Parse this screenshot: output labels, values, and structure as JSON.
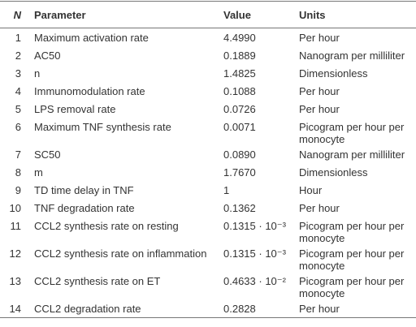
{
  "table": {
    "header": [
      "N",
      "Parameter",
      "Value",
      "Units"
    ],
    "rows": [
      [
        "1",
        "Maximum activation rate",
        "4.4990",
        "Per hour"
      ],
      [
        "2",
        "AC50",
        "0.1889",
        "Nanogram per milliliter"
      ],
      [
        "3",
        "n",
        "1.4825",
        "Dimensionless"
      ],
      [
        "4",
        "Immunomodulation rate",
        "0.1088",
        "Per hour"
      ],
      [
        "5",
        "LPS removal rate",
        "0.0726",
        "Per hour"
      ],
      [
        "6",
        "Maximum TNF synthesis rate",
        "0.0071",
        "Picogram per hour per monocyte"
      ],
      [
        "7",
        "SC50",
        "0.0890",
        "Nanogram per milliliter"
      ],
      [
        "8",
        "m",
        "1.7670",
        "Dimensionless"
      ],
      [
        "9",
        "TD time delay in TNF",
        "1",
        "Hour"
      ],
      [
        "10",
        "TNF degradation rate",
        "0.1362",
        "Per hour"
      ],
      [
        "11",
        "CCL2 synthesis rate on resting",
        "0.1315 · 10⁻³",
        "Picogram per hour per monocyte"
      ],
      [
        "12",
        "CCL2 synthesis rate on inflammation",
        "0.1315 · 10⁻³",
        "Picogram per hour per monocyte"
      ],
      [
        "13",
        "CCL2 synthesis rate on ET",
        "0.4633 · 10⁻²",
        "Picogram per hour per monocyte"
      ],
      [
        "14",
        "CCL2 degradation rate",
        "0.2828",
        "Per hour"
      ]
    ]
  }
}
